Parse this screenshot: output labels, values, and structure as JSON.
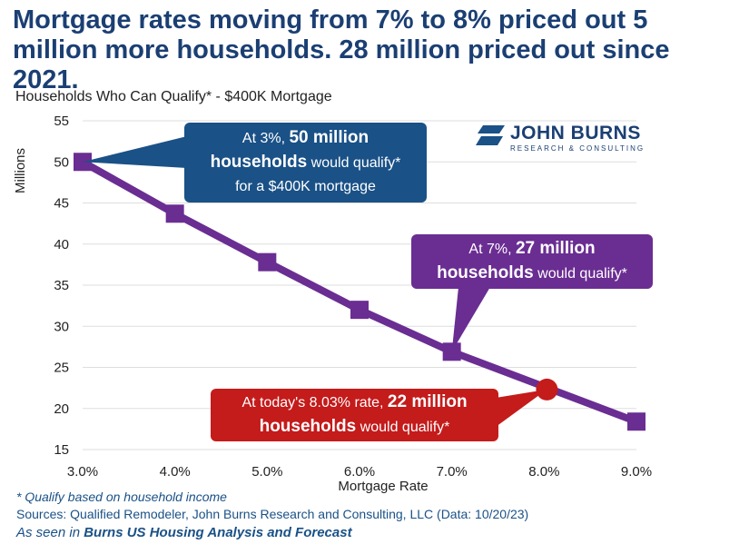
{
  "headline": "Mortgage rates moving from 7% to 8% priced out 5 million more households. 28 million priced out since 2021.",
  "colors": {
    "title": "#1b3f73",
    "line": "#6a2d92",
    "callout_blue": "#1a5187",
    "callout_purple": "#6a2d92",
    "callout_red": "#c41b1b",
    "grid": "#dddddd"
  },
  "chart_data": {
    "type": "line",
    "title": "Households Who Can Qualify* - $400K Mortgage",
    "xlabel": "Mortgage Rate",
    "ylabel": "Millions",
    "x": [
      3.0,
      4.0,
      5.0,
      6.0,
      7.0,
      9.0
    ],
    "x_tick_labels": [
      "3.0%",
      "4.0%",
      "5.0%",
      "6.0%",
      "7.0%",
      "8.0%",
      "9.0%"
    ],
    "x_ticks": [
      3,
      4,
      5,
      6,
      7,
      8,
      9
    ],
    "xlim": [
      3,
      9
    ],
    "ylim": [
      15,
      55
    ],
    "y_ticks": [
      15,
      20,
      25,
      30,
      35,
      40,
      45,
      50,
      55
    ],
    "grid": true,
    "series": [
      {
        "name": "Households who can qualify",
        "x": [
          3.0,
          4.0,
          5.0,
          6.0,
          7.0,
          9.0
        ],
        "values": [
          50.0,
          43.7,
          37.8,
          32.0,
          26.9,
          18.4
        ]
      }
    ],
    "highlight_point": {
      "x": 8.03,
      "y": 22.3,
      "label": "Today's rate"
    }
  },
  "callouts": {
    "rate3": {
      "prefix": "At 3%, ",
      "bold1": "50 million",
      "bold2": "households",
      "mid": " would qualify*",
      "line3": "for a $400K mortgage"
    },
    "rate7": {
      "prefix": "At 7%, ",
      "bold1": "27 million",
      "bold2": "households",
      "mid": " would qualify*"
    },
    "rate8": {
      "prefix": "At today's 8.03% rate, ",
      "bold1": "22 million",
      "bold2": "households",
      "mid": " would qualify*"
    }
  },
  "logo": {
    "name": "JOHN BURNS",
    "tagline": "RESEARCH & CONSULTING"
  },
  "footnote": "* Qualify based on household income",
  "sources": "Sources: Qualified Remodeler, John Burns Research and Consulting, LLC (Data: 10/20/23)",
  "seen_in": {
    "prefix": "As seen in ",
    "bold": "Burns US Housing Analysis and Forecast"
  }
}
